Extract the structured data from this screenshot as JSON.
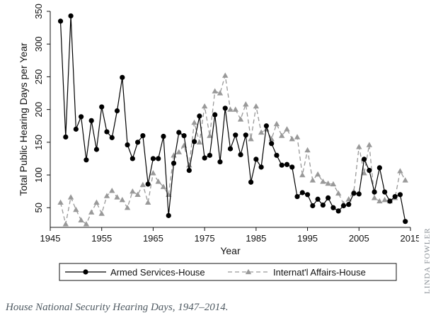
{
  "caption": "House National Security Hearing Days, 1947–2014.",
  "credit": "LINDA FOWLER",
  "chart_data": {
    "type": "line",
    "title": "",
    "xlabel": "Year",
    "ylabel": "Total Public Hearing Days per Year",
    "xlim": [
      1945,
      2015
    ],
    "ylim": [
      20,
      350
    ],
    "xticks": [
      1945,
      1955,
      1965,
      1975,
      1985,
      1995,
      2005,
      2015
    ],
    "yticks": [
      50,
      100,
      150,
      200,
      250,
      300,
      350
    ],
    "grid": false,
    "legend_position": "bottom",
    "series": [
      {
        "name": "Armed Services-House",
        "style": "solid",
        "marker": "circle",
        "color": "#000000",
        "x": [
          1947,
          1948,
          1949,
          1950,
          1951,
          1952,
          1953,
          1954,
          1955,
          1956,
          1957,
          1958,
          1959,
          1960,
          1961,
          1962,
          1963,
          1964,
          1965,
          1966,
          1967,
          1968,
          1969,
          1970,
          1971,
          1972,
          1973,
          1974,
          1975,
          1976,
          1977,
          1978,
          1979,
          1980,
          1981,
          1982,
          1983,
          1984,
          1985,
          1986,
          1987,
          1988,
          1989,
          1990,
          1991,
          1992,
          1993,
          1994,
          1995,
          1996,
          1997,
          1998,
          1999,
          2000,
          2001,
          2002,
          2003,
          2004,
          2005,
          2006,
          2007,
          2008,
          2009,
          2010,
          2011,
          2012,
          2013,
          2014
        ],
        "y": [
          335,
          158,
          343,
          170,
          189,
          123,
          183,
          139,
          204,
          166,
          157,
          198,
          249,
          146,
          125,
          150,
          160,
          86,
          125,
          125,
          159,
          38,
          118,
          165,
          160,
          107,
          151,
          190,
          126,
          130,
          192,
          120,
          202,
          140,
          161,
          131,
          161,
          89,
          124,
          112,
          175,
          148,
          130,
          115,
          116,
          112,
          67,
          73,
          70,
          53,
          63,
          54,
          65,
          50,
          45,
          53,
          55,
          72,
          71,
          124,
          107,
          74,
          111,
          74,
          60,
          67,
          70,
          29
        ]
      },
      {
        "name": "Internat'l Affairs-House",
        "style": "dashed",
        "marker": "triangle",
        "color": "#999999",
        "x": [
          1947,
          1948,
          1949,
          1950,
          1951,
          1952,
          1953,
          1954,
          1955,
          1956,
          1957,
          1958,
          1959,
          1960,
          1961,
          1962,
          1963,
          1964,
          1965,
          1966,
          1967,
          1968,
          1969,
          1970,
          1971,
          1972,
          1973,
          1974,
          1975,
          1976,
          1977,
          1978,
          1979,
          1980,
          1981,
          1982,
          1983,
          1984,
          1985,
          1986,
          1987,
          1988,
          1989,
          1990,
          1991,
          1992,
          1993,
          1994,
          1995,
          1996,
          1997,
          1998,
          1999,
          2000,
          2001,
          2002,
          2003,
          2004,
          2005,
          2006,
          2007,
          2008,
          2009,
          2010,
          2011,
          2012,
          2013,
          2014
        ],
        "y": [
          58,
          25,
          66,
          47,
          31,
          25,
          43,
          58,
          41,
          68,
          76,
          66,
          62,
          50,
          75,
          70,
          85,
          58,
          103,
          90,
          82,
          70,
          130,
          135,
          145,
          115,
          180,
          150,
          205,
          160,
          228,
          225,
          252,
          200,
          200,
          185,
          208,
          155,
          205,
          165,
          170,
          155,
          178,
          160,
          170,
          155,
          158,
          100,
          138,
          92,
          101,
          90,
          87,
          86,
          72,
          56,
          63,
          75,
          143,
          103,
          146,
          65,
          60,
          62,
          60,
          65,
          106,
          92
        ]
      }
    ]
  }
}
